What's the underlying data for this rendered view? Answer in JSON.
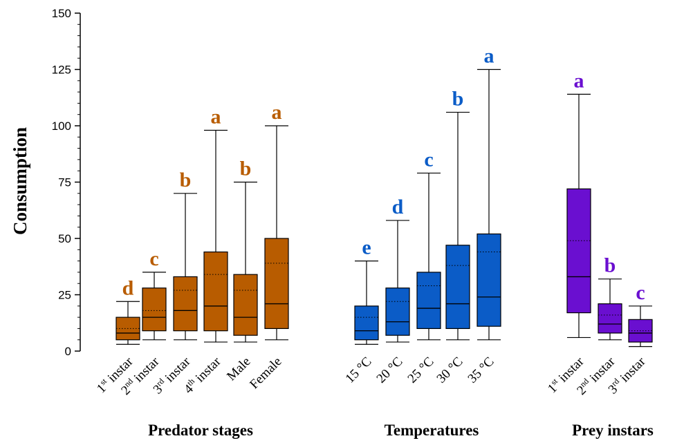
{
  "chart_data": {
    "type": "boxplot",
    "ylabel": "Consumption",
    "ylim": [
      0,
      150
    ],
    "yticks": [
      0,
      25,
      50,
      75,
      100,
      125,
      150
    ],
    "grid": false,
    "groups": [
      {
        "name": "Predator stages",
        "color": "#b85c00",
        "items": [
          {
            "label": "1st instar",
            "base": "1",
            "sup": "st",
            "rest": " instar",
            "min": 3,
            "q1": 5,
            "median": 8,
            "mean": 10,
            "q3": 15,
            "max": 22,
            "letter": "d"
          },
          {
            "label": "2nd instar",
            "base": "2",
            "sup": "nd",
            "rest": " instar",
            "min": 5,
            "q1": 9,
            "median": 15,
            "mean": 18,
            "q3": 28,
            "max": 35,
            "letter": "c"
          },
          {
            "label": "3rd instar",
            "base": "3",
            "sup": "rd",
            "rest": " instar",
            "min": 5,
            "q1": 9,
            "median": 18,
            "mean": 27,
            "q3": 33,
            "max": 70,
            "letter": "b"
          },
          {
            "label": "4th instar",
            "base": "4",
            "sup": "th",
            "rest": " instar",
            "min": 4,
            "q1": 9,
            "median": 20,
            "mean": 34,
            "q3": 44,
            "max": 98,
            "letter": "a"
          },
          {
            "label": "Male",
            "base": "Male",
            "sup": "",
            "rest": "",
            "min": 4,
            "q1": 7,
            "median": 15,
            "mean": 27,
            "q3": 34,
            "max": 75,
            "letter": "b"
          },
          {
            "label": "Female",
            "base": "Female",
            "sup": "",
            "rest": "",
            "min": 5,
            "q1": 10,
            "median": 21,
            "mean": 39,
            "q3": 50,
            "max": 100,
            "letter": "a"
          }
        ]
      },
      {
        "name": "Temperatures",
        "color": "#0b5cc7",
        "items": [
          {
            "label": "15 °C",
            "base": "15 °C",
            "sup": "",
            "rest": "",
            "min": 3,
            "q1": 5,
            "median": 9,
            "mean": 15,
            "q3": 20,
            "max": 40,
            "letter": "e"
          },
          {
            "label": "20 °C",
            "base": "20 °C",
            "sup": "",
            "rest": "",
            "min": 4,
            "q1": 7,
            "median": 13,
            "mean": 22,
            "q3": 28,
            "max": 58,
            "letter": "d"
          },
          {
            "label": "25 °C",
            "base": "25 °C",
            "sup": "",
            "rest": "",
            "min": 5,
            "q1": 10,
            "median": 19,
            "mean": 29,
            "q3": 35,
            "max": 79,
            "letter": "c"
          },
          {
            "label": "30 °C",
            "base": "30 °C",
            "sup": "",
            "rest": "",
            "min": 5,
            "q1": 10,
            "median": 21,
            "mean": 38,
            "q3": 47,
            "max": 106,
            "letter": "b"
          },
          {
            "label": "35 °C",
            "base": "35 °C",
            "sup": "",
            "rest": "",
            "min": 5,
            "q1": 11,
            "median": 24,
            "mean": 44,
            "q3": 52,
            "max": 125,
            "letter": "a"
          }
        ]
      },
      {
        "name": "Prey instars",
        "color": "#6a0fd0",
        "items": [
          {
            "label": "1st instar",
            "base": "1",
            "sup": "st",
            "rest": " instar",
            "min": 6,
            "q1": 17,
            "median": 33,
            "mean": 49,
            "q3": 72,
            "max": 114,
            "letter": "a"
          },
          {
            "label": "2nd instar",
            "base": "2",
            "sup": "nd",
            "rest": " instar",
            "min": 5,
            "q1": 8,
            "median": 12,
            "mean": 16,
            "q3": 21,
            "max": 32,
            "letter": "b"
          },
          {
            "label": "3rd instar",
            "base": "3",
            "sup": "rd",
            "rest": " instar",
            "min": 2,
            "q1": 4,
            "median": 8,
            "mean": 9,
            "q3": 14,
            "max": 20,
            "letter": "c"
          }
        ]
      }
    ]
  }
}
